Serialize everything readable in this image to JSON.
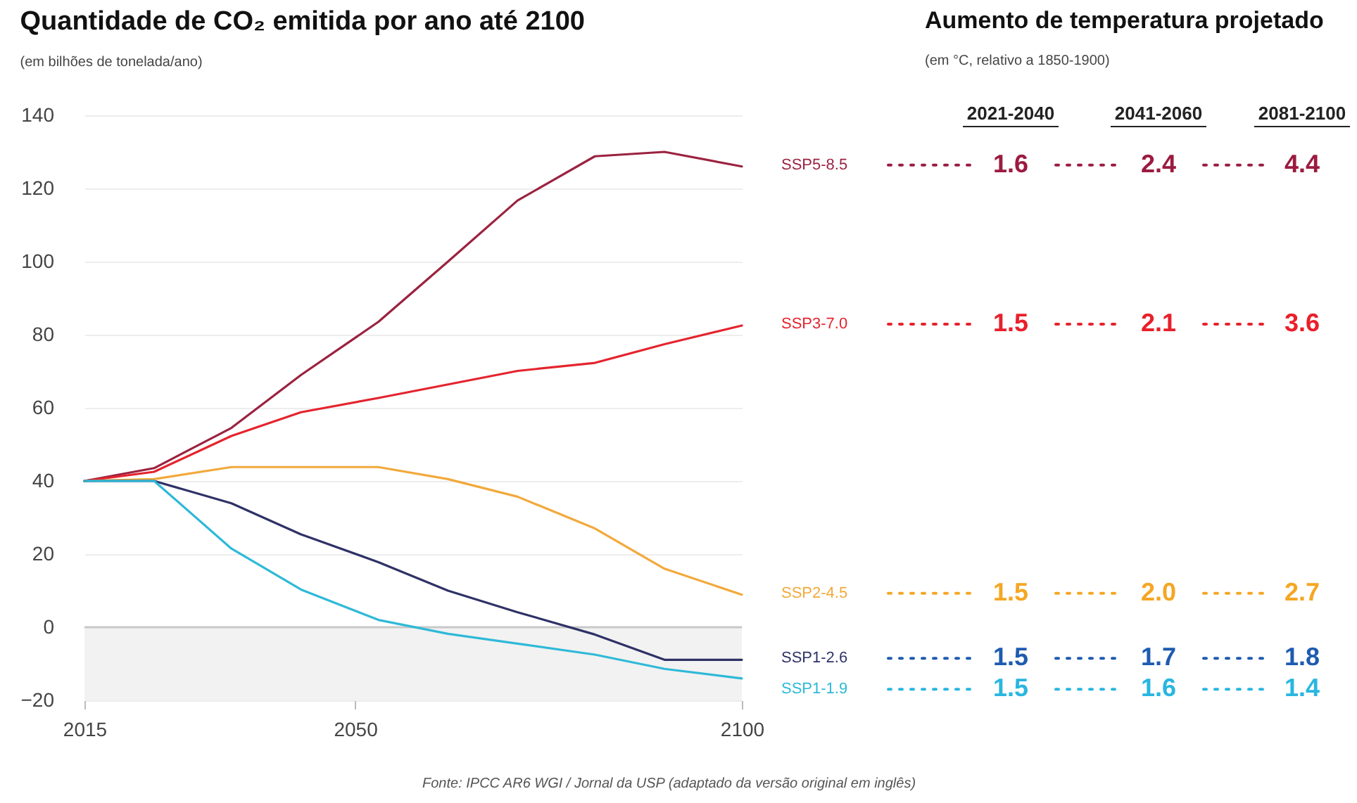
{
  "chart_data": [
    {
      "type": "line",
      "title": "Quantidade de CO₂ emitida por ano até 2100",
      "subtitle": "(em bilhões de tonelada/ano)",
      "x": [
        2015,
        2024,
        2034,
        2043,
        2053,
        2062,
        2071,
        2081,
        2090,
        2100
      ],
      "series": [
        {
          "name": "SSP5-8.5",
          "color": "#9b2240",
          "values": [
            40,
            43.5,
            54.5,
            69,
            83.5,
            100,
            116.7,
            128.8,
            130,
            126
          ]
        },
        {
          "name": "SSP3-7.0",
          "color": "#e4242e",
          "values": [
            40,
            42.5,
            52.3,
            58.8,
            62.7,
            66.4,
            70.1,
            72.3,
            77.4,
            82.5
          ]
        },
        {
          "name": "SSP2-4.5",
          "color": "#f2a93b",
          "values": [
            40,
            40.5,
            43.8,
            43.8,
            43.8,
            40.5,
            35.7,
            27,
            16,
            8.9
          ]
        },
        {
          "name": "SSP1-2.6",
          "color": "#2e3266",
          "values": [
            40,
            40,
            33.9,
            25.4,
            17.8,
            10,
            4.1,
            -2,
            -8.9,
            -8.9
          ]
        },
        {
          "name": "SSP1-1.9",
          "color": "#2fb9d8",
          "values": [
            40,
            40,
            21.5,
            10.3,
            2,
            -1.8,
            -4.5,
            -7.5,
            -11.4,
            -14
          ]
        }
      ],
      "xlim": [
        2015,
        2100
      ],
      "xticks": [
        2015,
        2050,
        2100
      ],
      "ylim": [
        -20,
        140
      ],
      "yticks": [
        -20,
        0,
        20,
        40,
        60,
        80,
        100,
        120,
        140
      ],
      "grid": "y",
      "bands": [
        {
          "axis": "y",
          "from": -20,
          "to": 0,
          "color": "#f2f2f2"
        }
      ],
      "ref_lines": [
        {
          "axis": "y",
          "value": 0,
          "color": "#c8c8c8"
        }
      ],
      "annotations": [
        "Fonte: IPCC AR6 WGI / Jornal da USP (adaptado da versão original em inglês)"
      ]
    },
    {
      "type": "other",
      "title": "Aumento de temperatura projetado",
      "subtitle": "(em °C, relativo a 1850-1900)",
      "categories": [
        "2021-2040",
        "2041-2060",
        "2081-2100"
      ],
      "series": [
        {
          "color": "#9b1b40",
          "values": [
            1.6,
            2.4,
            4.4
          ],
          "value_labels": [
            "1.6",
            "2.4",
            "4.4"
          ]
        },
        {
          "color": "#e8202a",
          "values": [
            1.5,
            2.1,
            3.6
          ],
          "value_labels": [
            "1.5",
            "2.1",
            "3.6"
          ]
        },
        {
          "color": "#f5a623",
          "values": [
            1.5,
            2.0,
            2.7
          ],
          "value_labels": [
            "1.5",
            "2.0",
            "2.7"
          ]
        },
        {
          "color": "#1e5bb0",
          "values": [
            1.5,
            1.7,
            1.8
          ],
          "value_labels": [
            "1.5",
            "1.7",
            "1.8"
          ]
        },
        {
          "color": "#29b6e0",
          "values": [
            1.5,
            1.6,
            1.4
          ],
          "value_labels": [
            "1.5",
            "1.6",
            "1.4"
          ]
        }
      ]
    }
  ]
}
